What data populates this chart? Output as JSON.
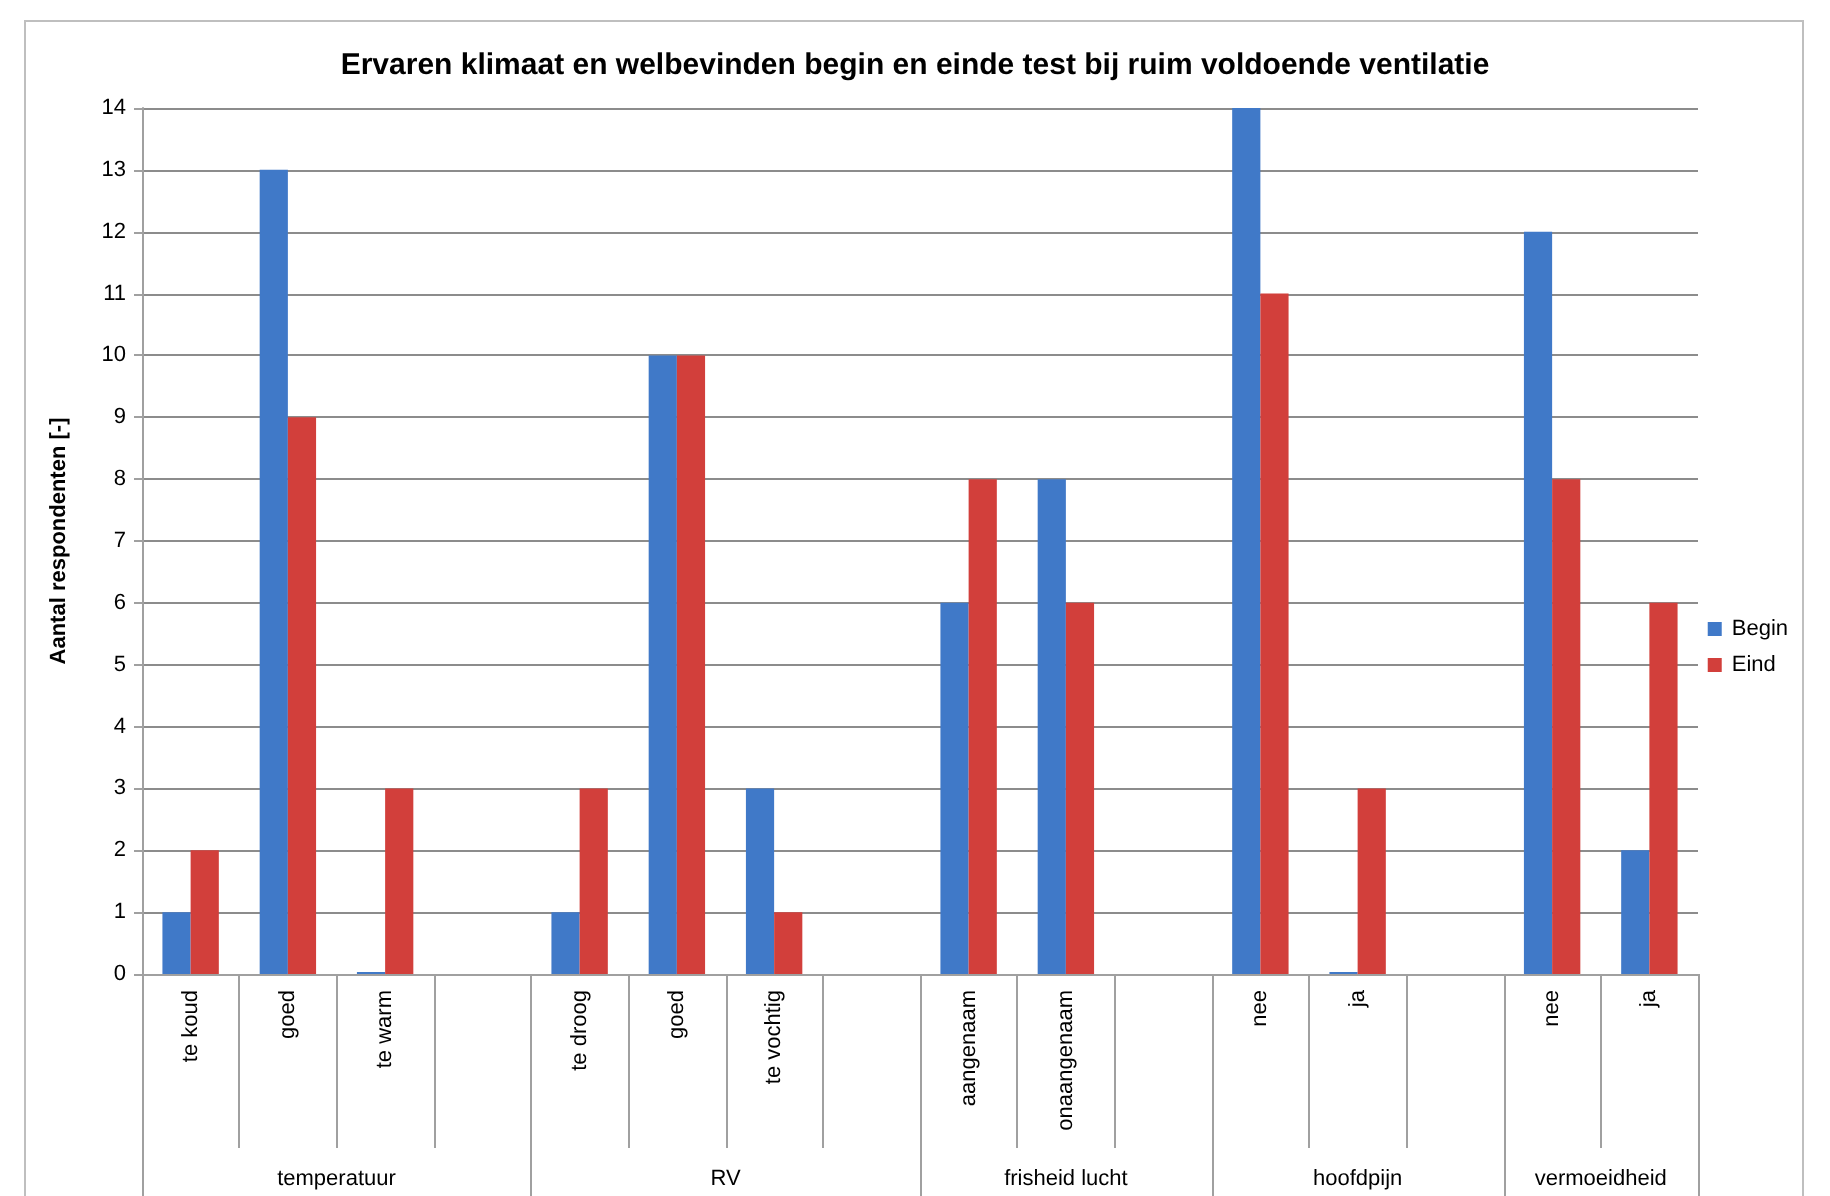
{
  "chart_data": {
    "type": "bar",
    "title": "Ervaren klimaat en welbevinden begin en einde test bij ruim voldoende ventilatie",
    "ylabel": "Aantal respondenten [-]",
    "categories": [
      "te koud",
      "goed",
      "te warm",
      null,
      "te droog",
      "goed",
      "te vochtig",
      null,
      "aangenaam",
      "onaangenaam",
      null,
      "nee",
      "ja",
      null,
      "nee",
      "ja"
    ],
    "series": [
      {
        "name": "Begin",
        "color": "#4079c8",
        "values": [
          1,
          13,
          0,
          null,
          1,
          10,
          3,
          null,
          6,
          8,
          null,
          14,
          0,
          null,
          12,
          2
        ]
      },
      {
        "name": "Eind",
        "color": "#d23f3b",
        "values": [
          2,
          9,
          3,
          null,
          3,
          10,
          1,
          null,
          8,
          6,
          null,
          11,
          3,
          null,
          8,
          6
        ]
      }
    ],
    "ylim": [
      0,
      14
    ],
    "yticks": [
      0,
      1,
      2,
      3,
      4,
      5,
      6,
      7,
      8,
      9,
      10,
      11,
      12,
      13,
      14
    ],
    "grid": "y",
    "legend": "right",
    "annotations": [
      "temperatuur",
      "RV",
      "frisheid lucht",
      "hoofdpijn",
      "vermoeidheid"
    ]
  }
}
